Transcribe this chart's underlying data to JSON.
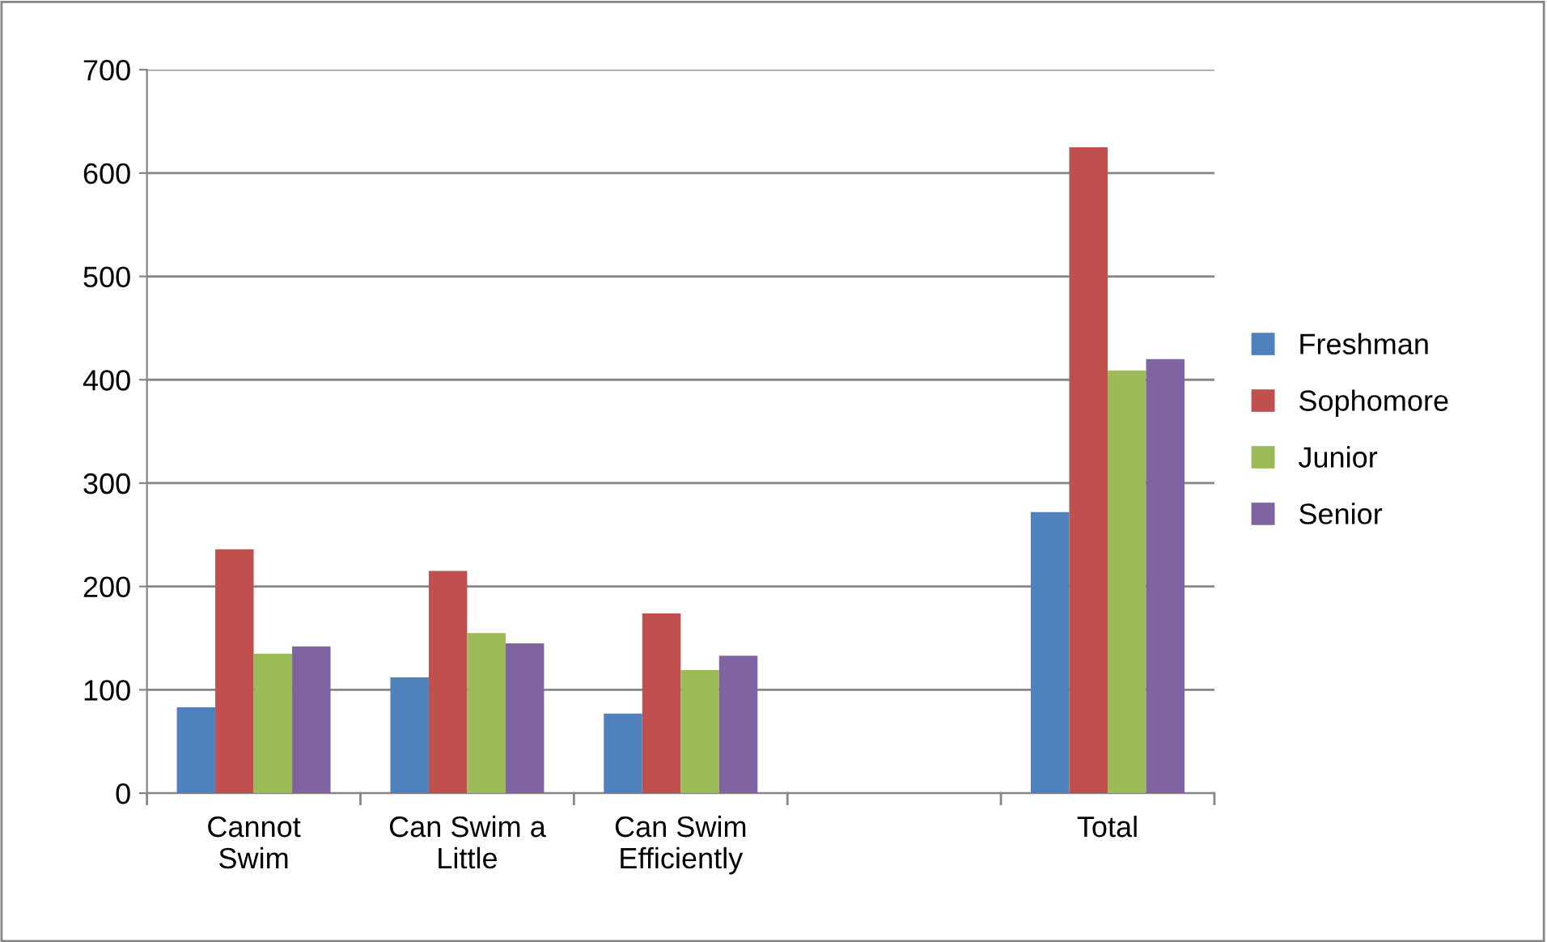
{
  "chart_data": {
    "type": "bar",
    "categories": [
      "Cannot\nSwim",
      "Can Swim a\nLittle",
      "Can Swim\nEfficiently",
      null,
      "Total"
    ],
    "series": [
      {
        "name": "Freshman",
        "color": "#4f81bd",
        "values": [
          83,
          112,
          77,
          null,
          272
        ]
      },
      {
        "name": "Sophomore",
        "color": "#c0504d",
        "values": [
          236,
          215,
          174,
          null,
          625
        ]
      },
      {
        "name": "Junior",
        "color": "#9bbb59",
        "values": [
          135,
          155,
          119,
          null,
          409
        ]
      },
      {
        "name": "Senior",
        "color": "#8064a2",
        "values": [
          142,
          145,
          133,
          null,
          420
        ]
      }
    ],
    "ylim": [
      0,
      700
    ],
    "yticks": [
      0,
      100,
      200,
      300,
      400,
      500,
      600,
      700
    ],
    "grid": "y",
    "legend": "right"
  }
}
